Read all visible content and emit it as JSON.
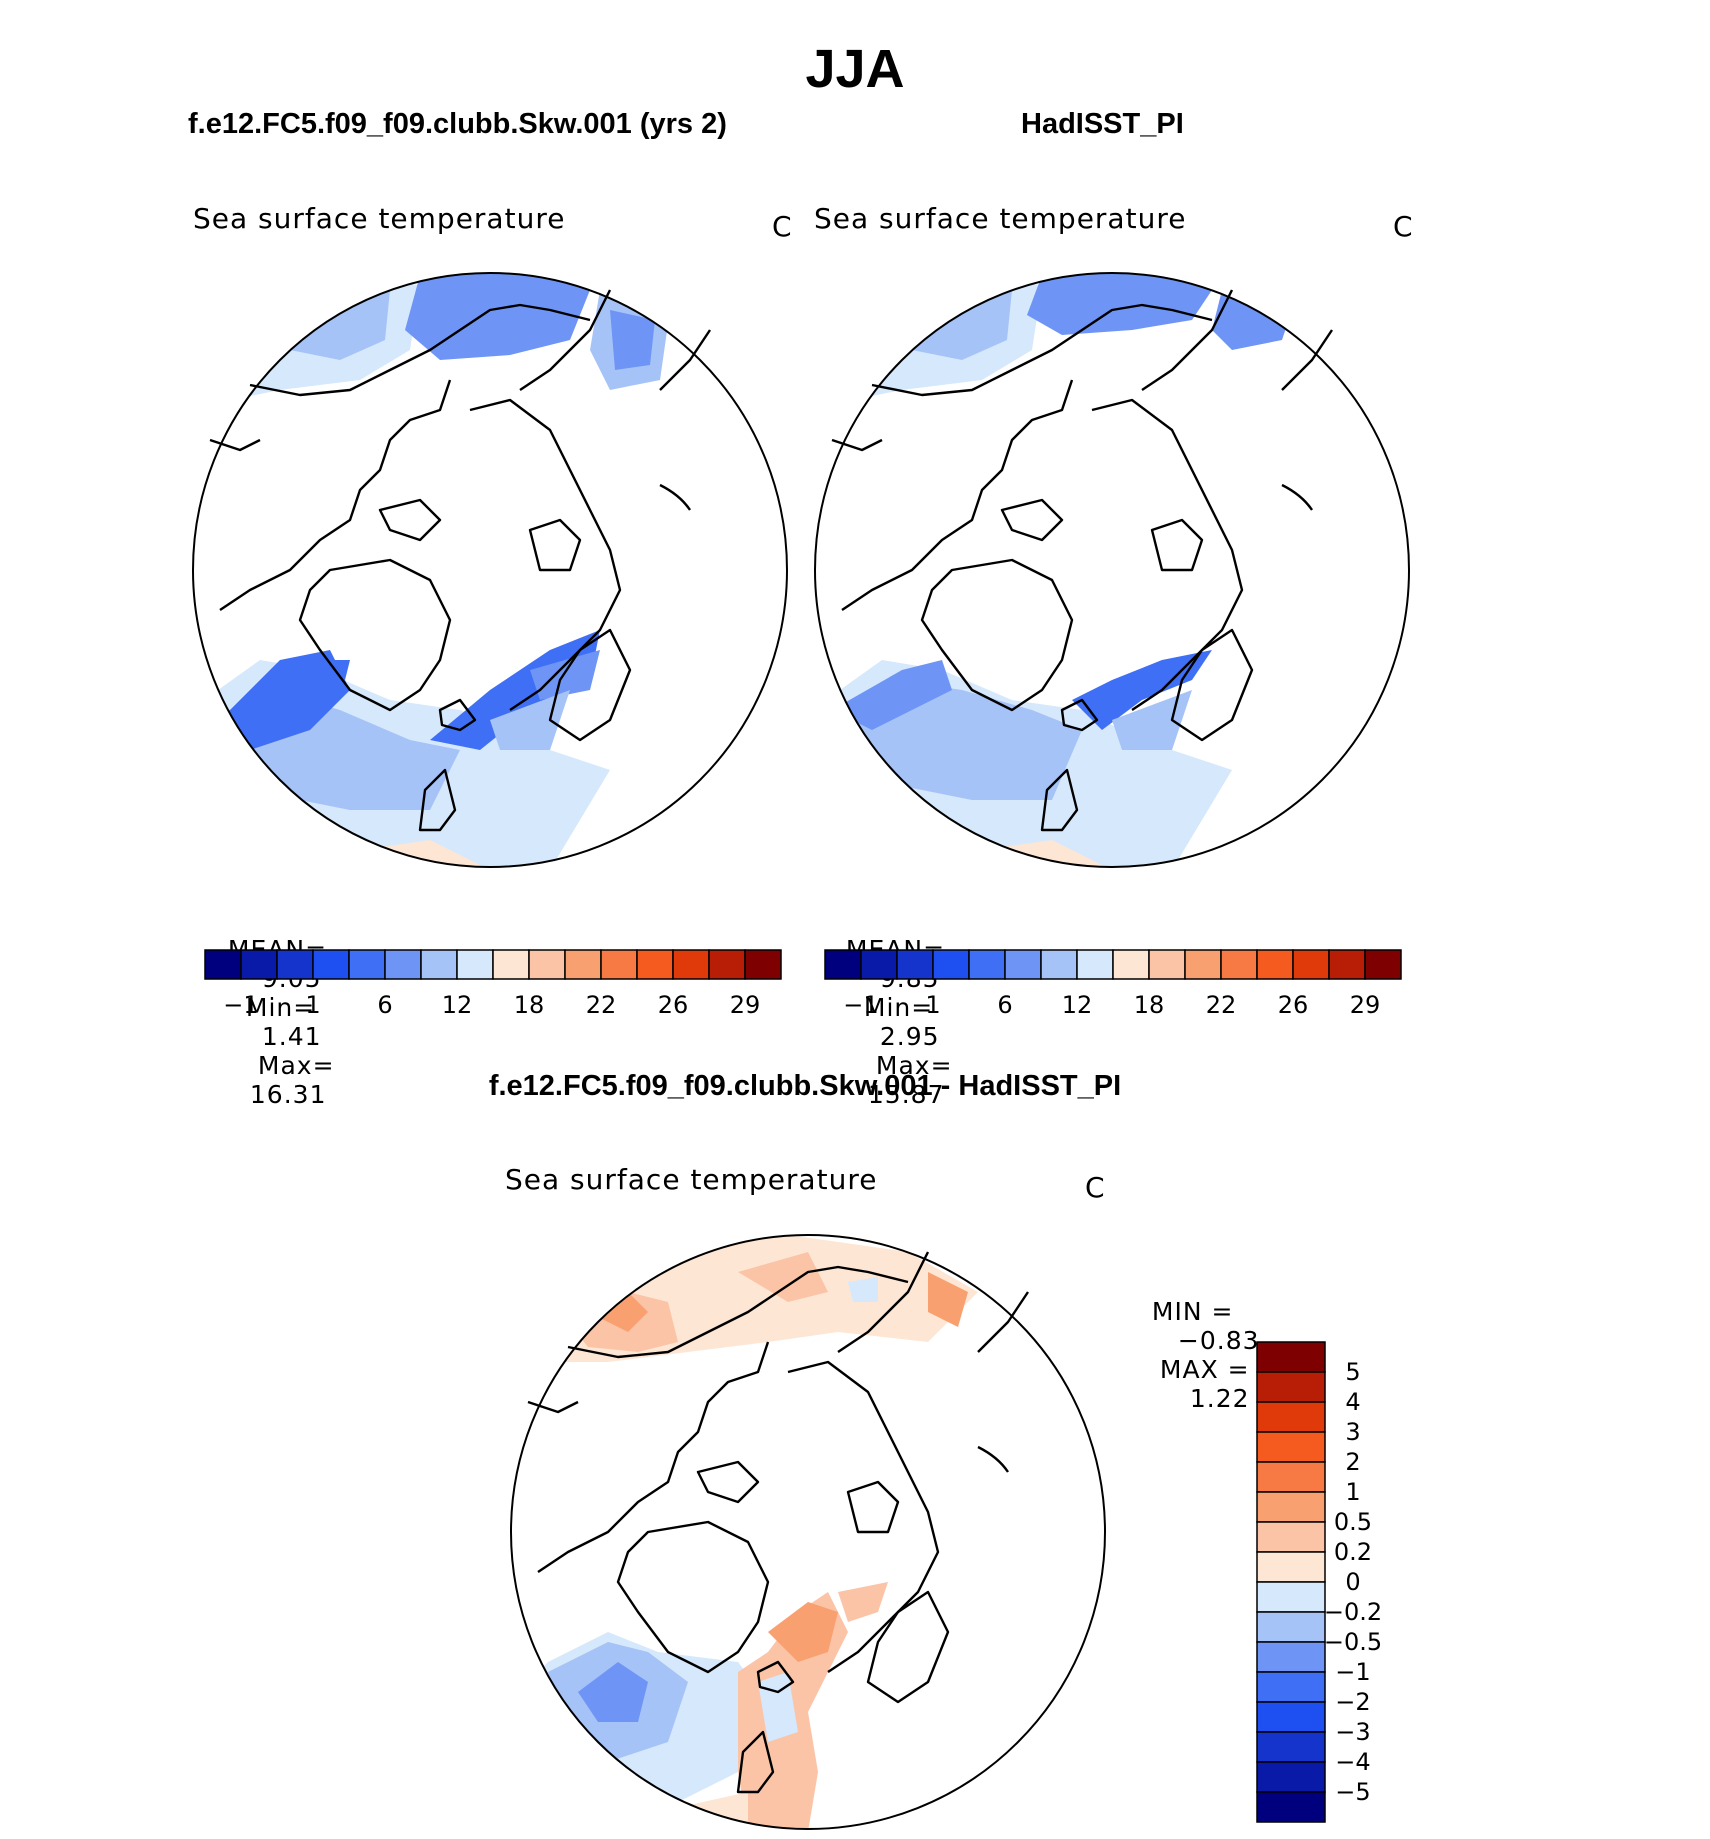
{
  "page": {
    "title": "JJA",
    "diff_title": "f.e12.FC5.f09_f09.clubb.Skw.001 - HadISST_PI"
  },
  "panels": [
    {
      "header": "f.e12.FC5.f09_f09.clubb.Skw.001 (yrs 2)",
      "variable": "Sea surface temperature",
      "units": "C",
      "stats": {
        "mean_label": "MEAN=",
        "mean": "9.05",
        "min_label": "Min=",
        "min": "1.41",
        "max_label": "Max=",
        "max": "16.31"
      }
    },
    {
      "header": "HadISST_PI",
      "variable": "Sea surface temperature",
      "units": "C",
      "stats": {
        "mean_label": "MEAN=",
        "mean": "9.85",
        "min_label": "Min=",
        "min": "2.95",
        "max_label": "Max=",
        "max": "15.87"
      }
    }
  ],
  "diff_panel": {
    "variable": "Sea surface temperature",
    "units": "C",
    "min_label": "MIN =",
    "min": "−0.83",
    "max_label": "MAX =",
    "max": "1.22"
  },
  "colorbar_horizontal": {
    "colors": [
      "#00007f",
      "#0a1aa8",
      "#1434cc",
      "#1e4ff0",
      "#3f6ff5",
      "#6e95f5",
      "#a6c3f7",
      "#d6e8fb",
      "#fde6d4",
      "#fbc4a6",
      "#f8a070",
      "#f77a45",
      "#f55a1e",
      "#e03a0a",
      "#b81e05",
      "#7f0000"
    ],
    "tick_labels": [
      "−1",
      "1",
      "6",
      "12",
      "18",
      "22",
      "26",
      "29"
    ]
  },
  "colorbar_vertical": {
    "colors_top_to_bottom": [
      "#7f0000",
      "#b81e05",
      "#e03a0a",
      "#f55a1e",
      "#f77a45",
      "#f8a070",
      "#fbc4a6",
      "#fde6d4",
      "#d6e8fb",
      "#a6c3f7",
      "#6e95f5",
      "#3f6ff5",
      "#1e4ff0",
      "#1434cc",
      "#0a1aa8",
      "#00007f"
    ],
    "tick_labels": [
      "5",
      "4",
      "3",
      "2",
      "1",
      "0.5",
      "0.2",
      "0",
      "−0.2",
      "−0.5",
      "−1",
      "−2",
      "−3",
      "−4",
      "−5"
    ]
  }
}
